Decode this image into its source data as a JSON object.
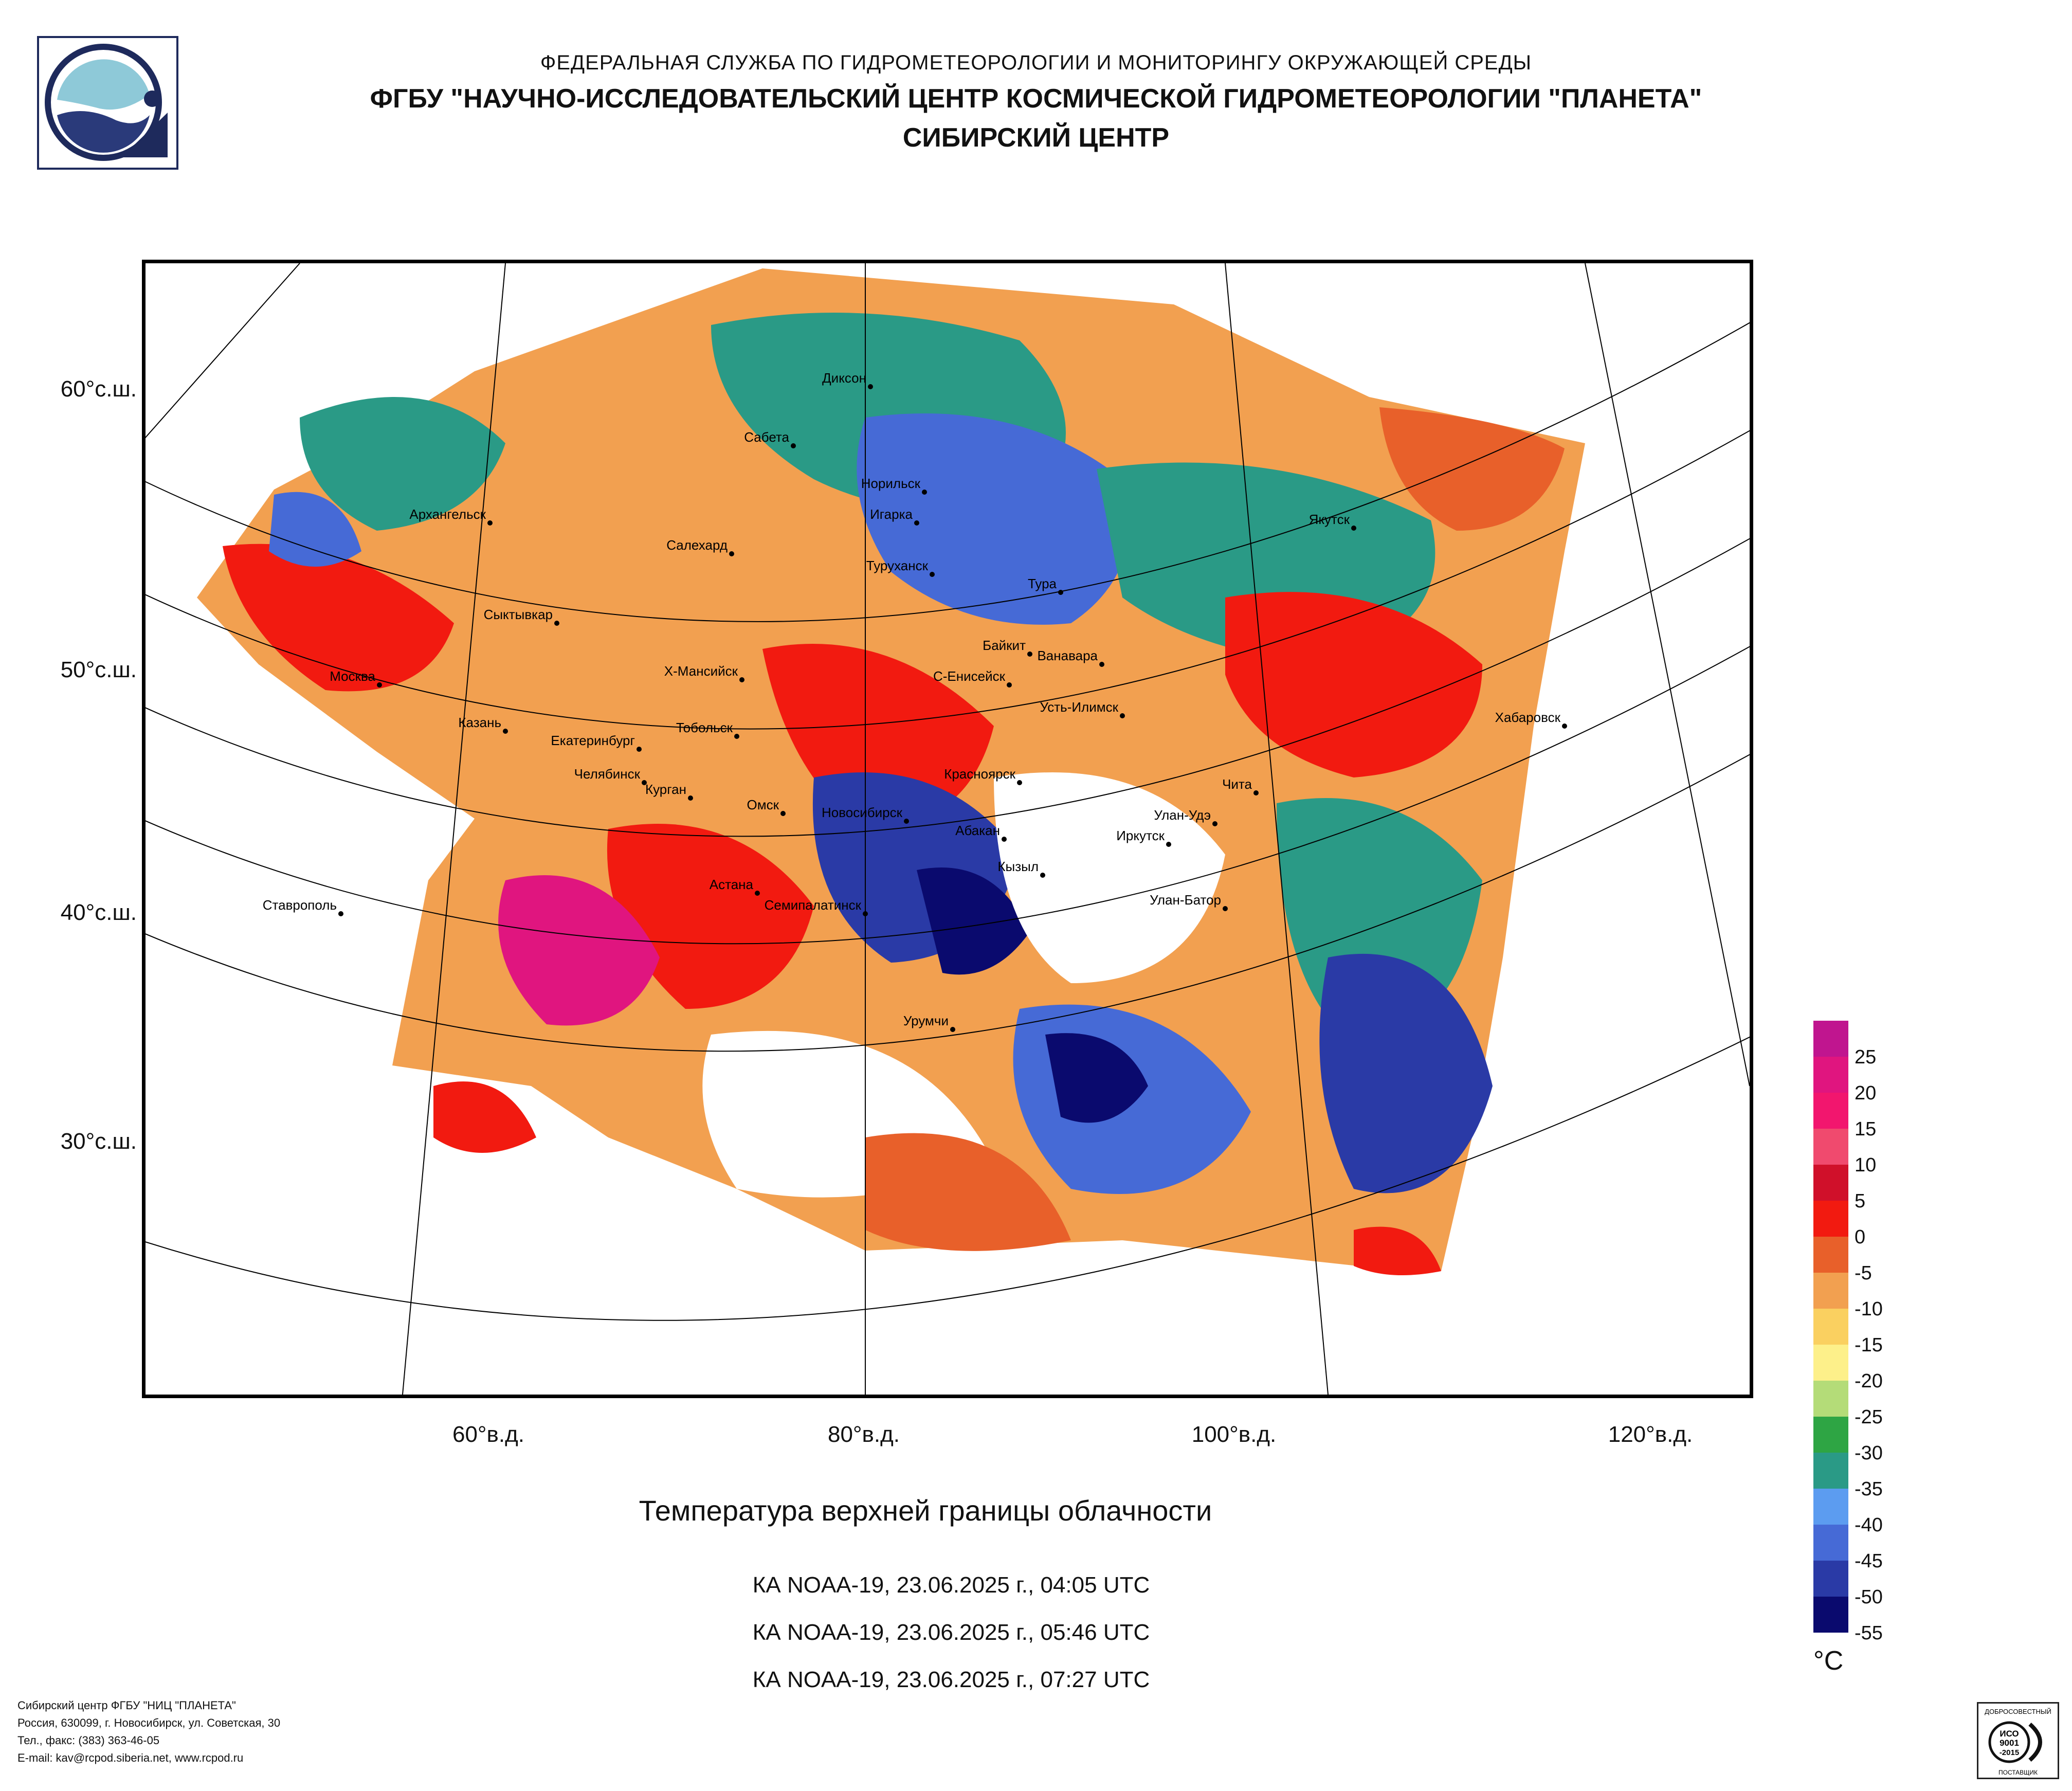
{
  "header": {
    "line1": "ФЕДЕРАЛЬНАЯ СЛУЖБА ПО ГИДРОМЕТЕОРОЛОГИИ И МОНИТОРИНГУ ОКРУЖАЮЩЕЙ СРЕДЫ",
    "line2": "ФГБУ \"НАУЧНО-ИССЛЕДОВАТЕЛЬСКИЙ ЦЕНТР КОСМИЧЕСКОЙ ГИДРОМЕТЕОРОЛОГИИ \"ПЛАНЕТА\"",
    "line3": "СИБИРСКИЙ ЦЕНТР"
  },
  "map": {
    "lat_labels": [
      "60°с.ш.",
      "50°с.ш.",
      "40°с.ш.",
      "30°с.ш."
    ],
    "lon_labels": [
      "60°в.д.",
      "80°в.д.",
      "100°в.д.",
      "120°в.д."
    ],
    "cities": [
      "Диксон",
      "Сабета",
      "Норильск",
      "Игарка",
      "Архангельск",
      "Салехард",
      "Туруханск",
      "Тура",
      "Якутск",
      "Сыктывкар",
      "Байкит",
      "Ванавара",
      "Москва",
      "Х-Мансийск",
      "С-Енисейск",
      "Усть-Илимск",
      "Хабаровск",
      "Казань",
      "Екатеринбург",
      "Тобольск",
      "Красноярск",
      "Челябинск",
      "Курган",
      "Омск",
      "Новосибирск",
      "Абакан",
      "Чита",
      "Улан-Удэ",
      "Иркутск",
      "Кызыл",
      "Ставрополь",
      "Астана",
      "Семипалатинск",
      "Улан-Батор",
      "Урумчи"
    ]
  },
  "legend": {
    "unit": "°С",
    "ticks": [
      "25",
      "20",
      "15",
      "10",
      "5",
      "0",
      "-5",
      "-10",
      "-15",
      "-20",
      "-25",
      "-30",
      "-35",
      "-40",
      "-45",
      "-50",
      "-55"
    ],
    "colors": [
      "#c0158f",
      "#e0157f",
      "#f2166e",
      "#f04a6e",
      "#d0102a",
      "#f21a10",
      "#e8602a",
      "#f2a050",
      "#fad060",
      "#fdf08a",
      "#b4dc78",
      "#2ea544",
      "#2a9a86",
      "#5c9cf0",
      "#466ad6",
      "#2a3aa6",
      "#0a0a6e"
    ]
  },
  "title": "Температура верхней границы облачности",
  "passes": [
    "КА NOAA-19, 23.06.2025 г., 04:05 UTC",
    "КА NOAA-19, 23.06.2025 г., 05:46 UTC",
    "КА NOAA-19, 23.06.2025 г., 07:27 UTC"
  ],
  "footer": {
    "line1": "Сибирский центр ФГБУ \"НИЦ \"ПЛАНЕТА\"",
    "line2": "Россия, 630099, г. Новосибирск, ул. Советская, 30",
    "line3": "Тел., факс: (383) 363-46-05",
    "line4": "E-mail: kav@rcpod.siberia.net, www.rcpod.ru"
  },
  "certificate": {
    "arc_text": "ДОБРОСОВЕСТНЫЙ",
    "line1": "ИСО",
    "line2": "9001",
    "line3": "-2015",
    "bottom": "ПОСТАВЩИК"
  }
}
